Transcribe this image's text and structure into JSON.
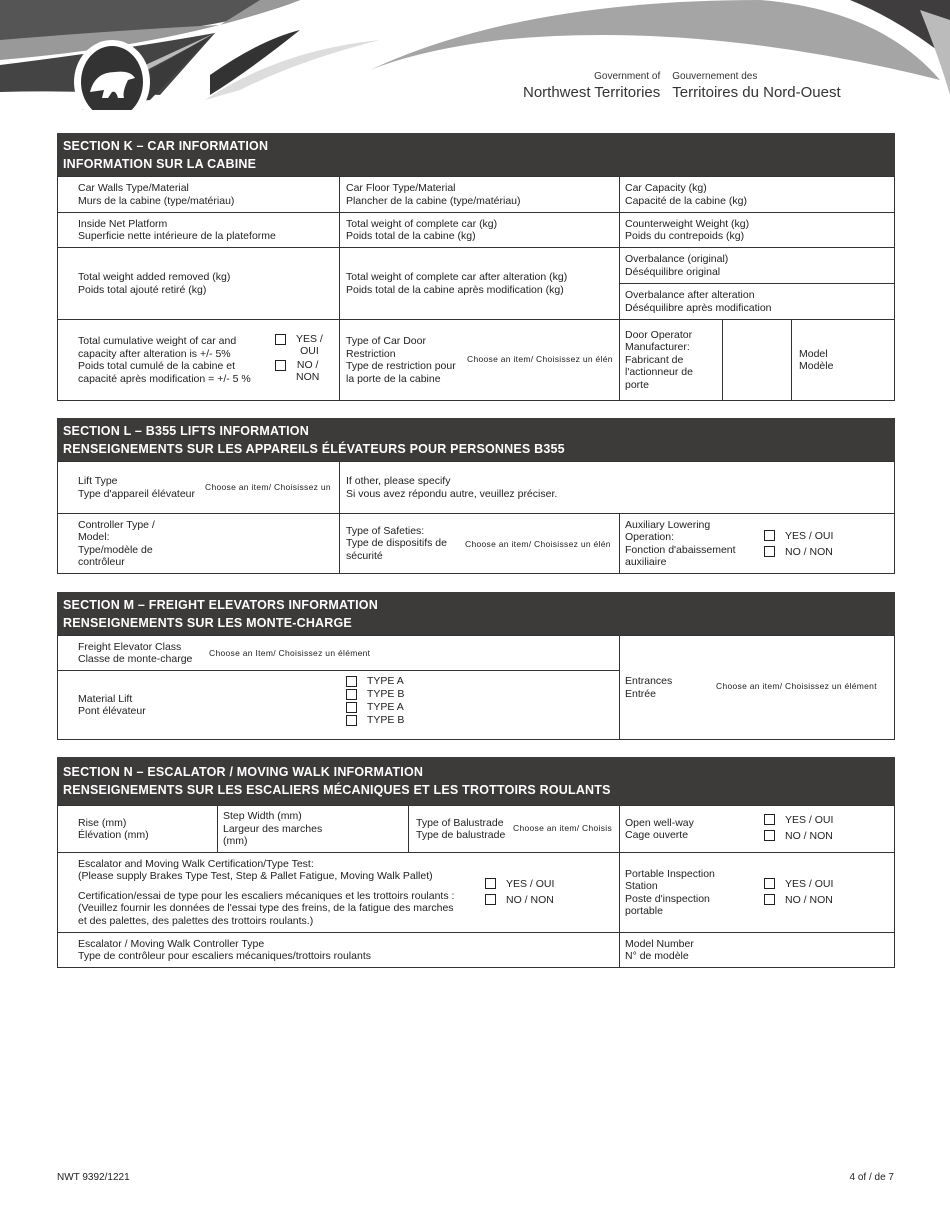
{
  "header": {
    "gov_en_small": "Government of",
    "gov_en": "Northwest Territories",
    "gov_fr_small": "Gouvernement des",
    "gov_fr": "Territoires du Nord-Ouest"
  },
  "dropdown": "Choose an item/ Choisissez un élément",
  "dropdown_cap": "Choose an Item/ Choisissez un élément",
  "yes": "YES / OUI",
  "no": "NO / NON",
  "k": {
    "title1": "SECTION K – CAR INFORMATION",
    "title2": "INFORMATION SUR LA CABINE",
    "walls": [
      "Car Walls Type/Material",
      "Murs de la cabine (type/matériau)"
    ],
    "floor": [
      "Car Floor Type/Material",
      "Plancher de la cabine (type/matériau)"
    ],
    "capacity": [
      "Car Capacity (kg)",
      "Capacité de la cabine (kg)"
    ],
    "platform": [
      "Inside Net Platform",
      "Superficie nette intérieure de la plateforme"
    ],
    "weight": [
      "Total weight of complete car (kg)",
      "Poids total de la cabine (kg)"
    ],
    "counter": [
      "Counterweight Weight (kg)",
      "Poids du contrepoids (kg)"
    ],
    "added": [
      "Total weight added removed (kg)",
      "Poids total ajouté retiré (kg)"
    ],
    "after": [
      "Total weight of complete car after alteration (kg)",
      "Poids total de la cabine après modification (kg)"
    ],
    "overbal": [
      "Overbalance (original)",
      "Déséquilibre original"
    ],
    "overbal_after": [
      "Overbalance after alteration",
      "Déséquilibre après modification"
    ],
    "cumulative": [
      "Total cumulative weight of car and",
      "capacity after alteration is +/- 5%",
      "Poids total cumulé de la cabine et",
      "capacité après modification = +/- 5 %"
    ],
    "yes": [
      "YES /",
      "OUI"
    ],
    "no": [
      "NO /",
      "NON"
    ],
    "door": [
      "Type of Car Door",
      "Restriction",
      "Type de restriction pour",
      "la porte de la cabine"
    ],
    "door_dd": "Choose an item/ Choisissez un élén",
    "operator": [
      "Door Operator",
      "Manufacturer:",
      "Fabricant de",
      "l'actionneur de",
      "porte"
    ],
    "model": [
      "Model",
      "Modèle"
    ]
  },
  "l": {
    "title1": "SECTION L – B355 LIFTS INFORMATION",
    "title2": "RENSEIGNEMENTS SUR LES APPAREILS ÉLÉVATEURS POUR PERSONNES B355",
    "lift": [
      "Lift Type",
      "Type d'appareil élévateur"
    ],
    "lift_dd": "Choose an item/ Choisissez un",
    "other": [
      "If other, please specify",
      "Si vous avez répondu autre, veuillez préciser."
    ],
    "controller": [
      "Controller Type /",
      "Model:",
      "Type/modèle de",
      "contrôleur"
    ],
    "safeties": [
      "Type of Safeties:",
      "Type de dispositifs de",
      "sécurité"
    ],
    "safeties_dd": "Choose an item/ Choisissez un élén",
    "aux": [
      "Auxiliary Lowering",
      "Operation:",
      "Fonction d'abaissement",
      "auxiliaire"
    ]
  },
  "m": {
    "title1": "SECTION M – FREIGHT ELEVATORS INFORMATION",
    "title2": "RENSEIGNEMENTS SUR LES MONTE-CHARGE",
    "class": [
      "Freight Elevator Class",
      "Classe de monte-charge"
    ],
    "material": [
      "Material Lift",
      "Pont élévateur"
    ],
    "types": [
      "TYPE A",
      "TYPE B",
      "TYPE A",
      "TYPE B"
    ],
    "entrances": [
      "Entrances",
      "Entrée"
    ]
  },
  "n": {
    "title1": "SECTION N – ESCALATOR / MOVING WALK INFORMATION",
    "title2": "RENSEIGNEMENTS SUR LES ESCALIERS MÉCANIQUES ET LES TROTTOIRS ROULANTS",
    "rise": [
      "Rise (mm)",
      "Élévation (mm)"
    ],
    "step": [
      "Step Width (mm)",
      "Largeur des marches",
      "(mm)"
    ],
    "balustrade": [
      "Type of Balustrade",
      "Type de balustrade"
    ],
    "balustrade_dd": "Choose an item/ Choisis",
    "wellway": [
      "Open well-way",
      "Cage ouverte"
    ],
    "cert": [
      "Escalator and Moving Walk Certification/Type Test:",
      "(Please supply Brakes Type Test, Step & Pallet Fatigue, Moving Walk Pallet)",
      "Certification/essai de type pour les escaliers mécaniques et les trottoirs roulants :",
      "(Veuillez fournir les données de l'essai type des freins, de la fatigue des marches",
      "et des palettes, des palettes des trottoirs roulants.)"
    ],
    "portable": [
      "Portable Inspection",
      "Station",
      "Poste d'inspection",
      "portable"
    ],
    "ctrl": [
      "Escalator / Moving Walk Controller Type",
      "Type de contrôleur pour escaliers mécaniques/trottoirs roulants"
    ],
    "modelno": [
      "Model Number",
      "N° de modèle"
    ]
  },
  "footer": {
    "form": "NWT 9392/1221",
    "page": "4 of / de 7"
  }
}
